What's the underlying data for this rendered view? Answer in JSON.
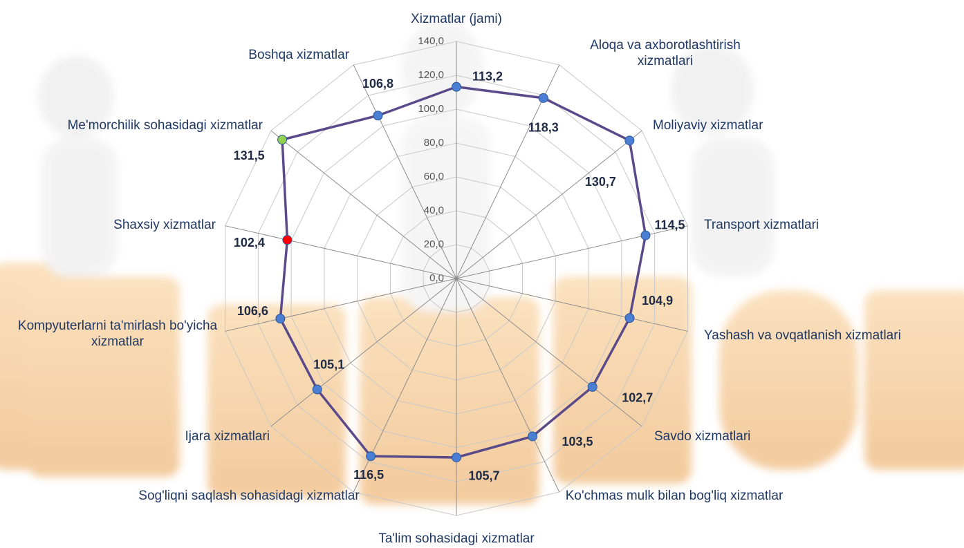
{
  "chart_data": {
    "type": "radar",
    "categories": [
      "Xizmatlar (jami)",
      "Aloqa va axborotlashtirish xizmatlari",
      "Moliyaviy xizmatlar",
      "Transport xizmatlari",
      "Yashash va ovqatlanish xizmatlari",
      "Savdo xizmatlari",
      "Ko'chmas mulk bilan bog'liq xizmatlar",
      "Ta'lim sohasidagi xizmatlar",
      "Sog'liqni saqlash sohasidagi xizmatlar",
      "Ijara xizmatlari",
      "Kompyuterlarni ta'mirlash bo'yicha xizmatlar",
      "Shaxsiy xizmatlar",
      "Me'morchilik sohasidagi xizmatlar",
      "Boshqa xizmatlar"
    ],
    "series": [
      {
        "color": "#5b4a8a",
        "values": [
          113.2,
          118.3,
          130.7,
          114.5,
          104.9,
          102.7,
          103.5,
          105.7,
          116.5,
          105.1,
          106.6,
          102.4,
          131.5,
          106.8
        ],
        "value_labels": [
          "113,2",
          "118,3",
          "130,7",
          "114,5",
          "104,9",
          "102,7",
          "103,5",
          "105,7",
          "116,5",
          "105,1",
          "106,6",
          "102,4",
          "131,5",
          "106,8"
        ],
        "point_colors": [
          "#4a7fd4",
          "#4a7fd4",
          "#4a7fd4",
          "#4a7fd4",
          "#4a7fd4",
          "#4a7fd4",
          "#4a7fd4",
          "#4a7fd4",
          "#4a7fd4",
          "#4a7fd4",
          "#4a7fd4",
          "#ff0000",
          "#92d050",
          "#4a7fd4"
        ]
      }
    ],
    "ylim": [
      0,
      140
    ],
    "yticks": [
      {
        "value": 0,
        "label": "0,0"
      },
      {
        "value": 20,
        "label": "20,0"
      },
      {
        "value": 40,
        "label": "40,0"
      },
      {
        "value": 60,
        "label": "60,0"
      },
      {
        "value": 80,
        "label": "80,0"
      },
      {
        "value": 100,
        "label": "100,0"
      },
      {
        "value": 120,
        "label": "120,0"
      },
      {
        "value": 140,
        "label": "140,0"
      }
    ],
    "grid": true
  }
}
